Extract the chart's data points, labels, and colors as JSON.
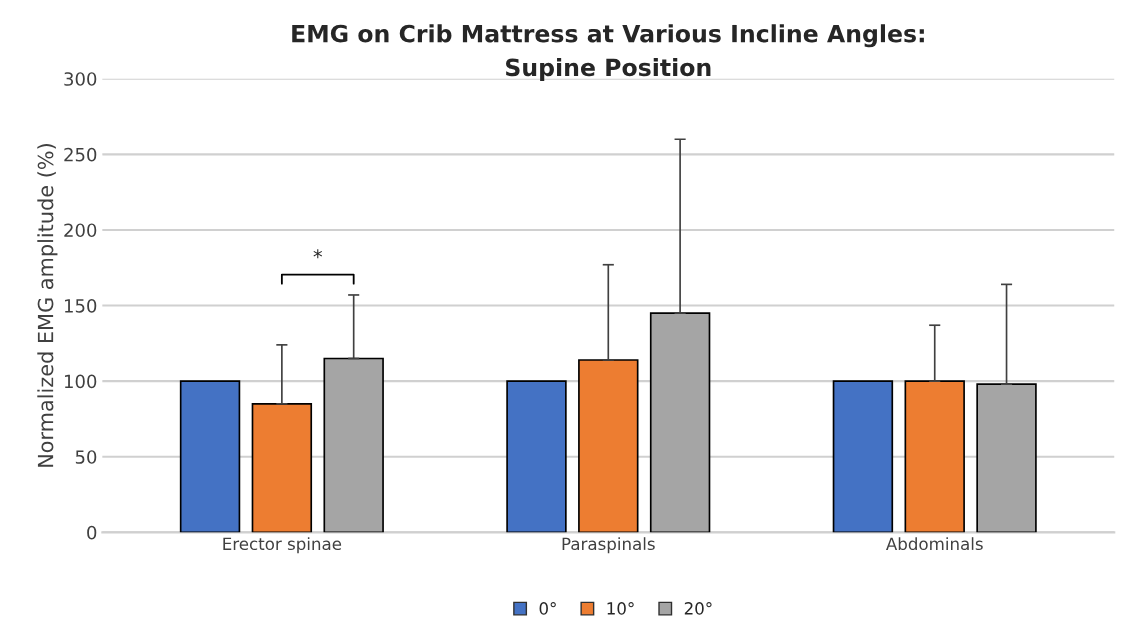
{
  "chart_data": {
    "type": "bar",
    "title": "EMG on Crib Mattress at Various Incline Angles:\nSupine Position",
    "ylabel": "Normalized EMG amplitude (%)",
    "categories": [
      "Erector spinae",
      "Paraspinals",
      "Abdominals"
    ],
    "series": [
      {
        "name": "0°",
        "color": "#4472c4",
        "values": [
          100,
          100,
          100
        ],
        "errors": [
          null,
          null,
          null
        ]
      },
      {
        "name": "10°",
        "color": "#ed7d31",
        "values": [
          85,
          114,
          100
        ],
        "errors": [
          [
            85,
            124
          ],
          [
            114,
            177
          ],
          [
            100,
            137
          ]
        ]
      },
      {
        "name": "20°",
        "color": "#a5a5a5",
        "values": [
          115,
          145,
          98
        ],
        "errors": [
          [
            115,
            157
          ],
          [
            145,
            260
          ],
          [
            98,
            164
          ]
        ]
      }
    ],
    "ylim": [
      0,
      300
    ],
    "yticks": [
      0,
      50,
      100,
      150,
      200,
      250,
      300
    ],
    "grid": "y",
    "legend": "bottom",
    "annotations": [
      "*"
    ]
  }
}
